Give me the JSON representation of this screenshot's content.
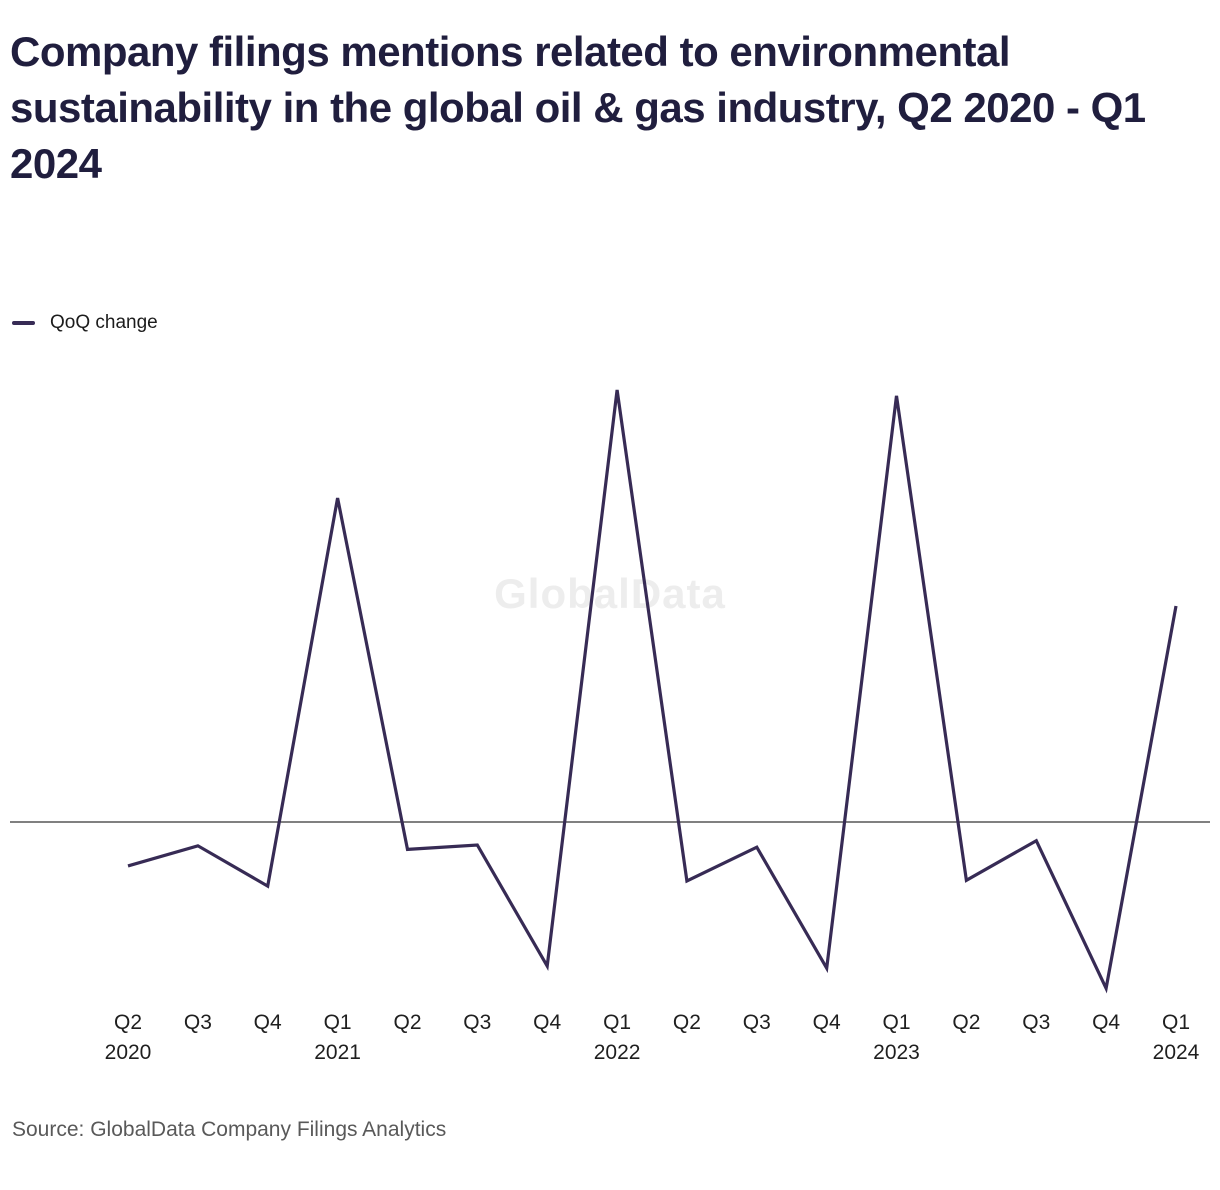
{
  "title": "Company filings mentions related to environmental sustainability in the global oil & gas industry, Q2 2020 - Q1 2024",
  "legend": {
    "label": "QoQ change"
  },
  "watermark": "GlobalData",
  "source": "Source: GlobalData Company Filings Analytics",
  "colors": {
    "line": "#372b55",
    "title": "#201e3e",
    "zero_line": "#000000",
    "axis_label": "#1f1f1f",
    "source_text": "#595959",
    "watermark": "#ededed"
  },
  "chart_data": {
    "type": "line",
    "title": "Company filings mentions related to environmental sustainability in the global oil & gas industry, Q2 2020 - Q1 2024",
    "xlabel": "",
    "ylabel": "",
    "legend_position": "top-left",
    "grid": false,
    "y_axis_visible": false,
    "baseline": 0,
    "ylim": [
      -25,
      62
    ],
    "categories": [
      "Q2 2020",
      "Q3 2020",
      "Q4 2020",
      "Q1 2021",
      "Q2 2021",
      "Q3 2021",
      "Q4 2021",
      "Q1 2022",
      "Q2 2022",
      "Q3 2022",
      "Q4 2022",
      "Q1 2023",
      "Q2 2023",
      "Q3 2023",
      "Q4 2023",
      "Q1 2024"
    ],
    "x_ticks": [
      {
        "quarter": "Q2",
        "year": "2020"
      },
      {
        "quarter": "Q3",
        "year": ""
      },
      {
        "quarter": "Q4",
        "year": ""
      },
      {
        "quarter": "Q1",
        "year": "2021"
      },
      {
        "quarter": "Q2",
        "year": ""
      },
      {
        "quarter": "Q3",
        "year": ""
      },
      {
        "quarter": "Q4",
        "year": ""
      },
      {
        "quarter": "Q1",
        "year": "2022"
      },
      {
        "quarter": "Q2",
        "year": ""
      },
      {
        "quarter": "Q3",
        "year": ""
      },
      {
        "quarter": "Q4",
        "year": ""
      },
      {
        "quarter": "Q1",
        "year": "2023"
      },
      {
        "quarter": "Q2",
        "year": ""
      },
      {
        "quarter": "Q3",
        "year": ""
      },
      {
        "quarter": "Q4",
        "year": ""
      },
      {
        "quarter": "Q1",
        "year": "2024"
      }
    ],
    "series": [
      {
        "name": "QoQ change",
        "values": [
          -6.1,
          -3.3,
          -8.9,
          45.0,
          -3.8,
          -3.2,
          -20.0,
          60.0,
          -8.2,
          -3.5,
          -20.3,
          59.2,
          -8.1,
          -2.6,
          -23.1,
          30.0
        ]
      }
    ]
  }
}
